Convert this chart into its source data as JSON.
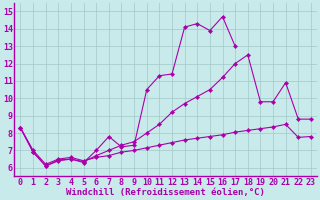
{
  "background_color": "#c8eaea",
  "grid_color": "#a0c8c8",
  "line_color": "#aa00aa",
  "xlabel": "Windchill (Refroidissement éolien,°C)",
  "xlabel_fontsize": 6.5,
  "tick_fontsize": 6.0,
  "xlim": [
    -0.5,
    23.5
  ],
  "ylim": [
    5.5,
    15.5
  ],
  "yticks": [
    6,
    7,
    8,
    9,
    10,
    11,
    12,
    13,
    14,
    15
  ],
  "xticks": [
    0,
    1,
    2,
    3,
    4,
    5,
    6,
    7,
    8,
    9,
    10,
    11,
    12,
    13,
    14,
    15,
    16,
    17,
    18,
    19,
    20,
    21,
    22,
    23
  ],
  "line1_x": [
    0,
    1,
    2,
    3,
    4,
    5,
    6,
    7,
    8,
    9,
    10,
    11,
    12,
    13,
    14,
    15,
    16,
    17
  ],
  "line1_y": [
    8.3,
    6.9,
    6.1,
    6.4,
    6.5,
    6.3,
    7.0,
    7.8,
    7.2,
    7.3,
    10.5,
    11.3,
    11.4,
    14.1,
    14.3,
    13.9,
    14.7,
    13.0
  ],
  "line2_x": [
    0,
    1,
    2,
    3,
    4,
    5,
    6,
    7,
    8,
    9,
    10,
    11,
    12,
    13,
    14,
    15,
    16,
    17,
    18,
    19,
    20,
    21,
    22,
    23
  ],
  "line2_y": [
    8.3,
    6.9,
    6.1,
    6.45,
    6.5,
    6.35,
    6.7,
    7.0,
    7.3,
    7.5,
    8.0,
    8.5,
    9.2,
    9.7,
    10.1,
    10.5,
    11.2,
    12.0,
    12.5,
    9.8,
    9.8,
    10.9,
    8.8,
    8.8
  ],
  "line3_x": [
    0,
    1,
    2,
    3,
    4,
    5,
    6,
    7,
    8,
    9,
    10,
    11,
    12,
    13,
    14,
    15,
    16,
    17,
    18,
    19,
    20,
    21,
    22,
    23
  ],
  "line3_y": [
    8.3,
    7.0,
    6.2,
    6.5,
    6.6,
    6.4,
    6.6,
    6.7,
    6.9,
    7.0,
    7.15,
    7.3,
    7.45,
    7.6,
    7.7,
    7.8,
    7.9,
    8.05,
    8.15,
    8.25,
    8.35,
    8.5,
    7.75,
    7.8
  ]
}
